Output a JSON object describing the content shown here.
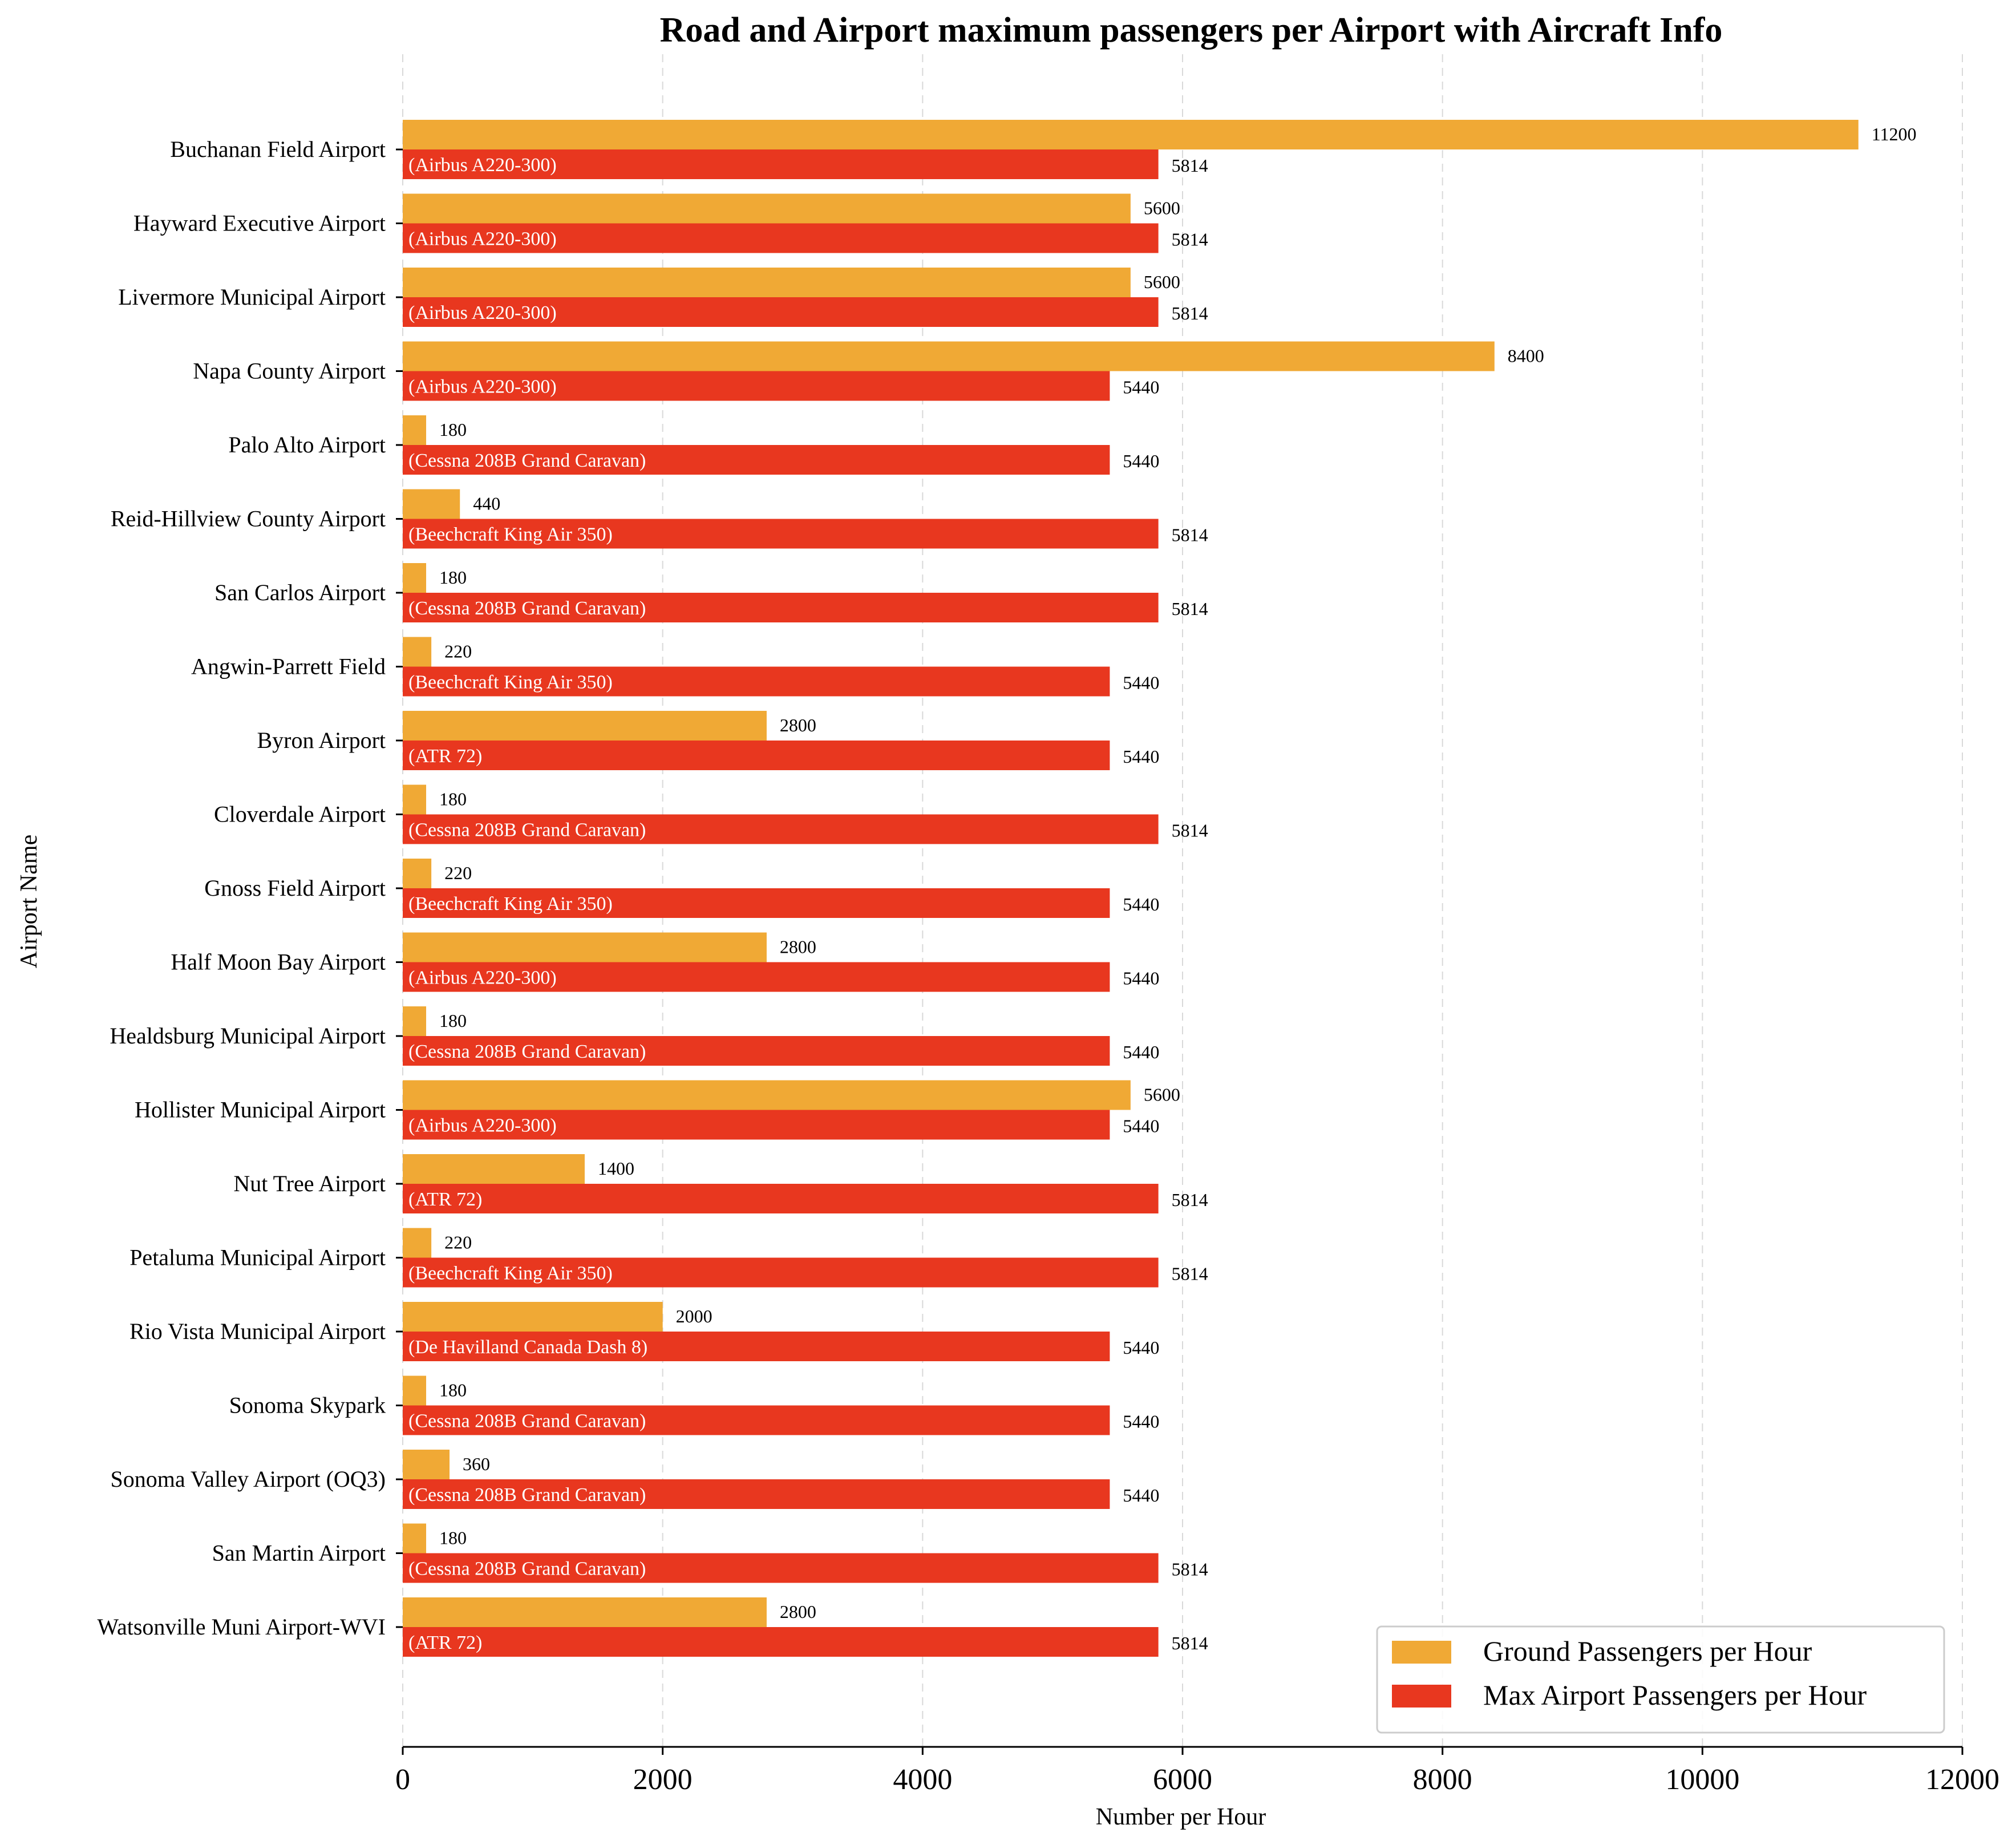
{
  "chart_data": {
    "type": "bar",
    "orientation": "horizontal",
    "title": "Road and Airport maximum passengers per Airport with Aircraft Info",
    "xlabel": "Number per Hour",
    "ylabel": "Airport Name",
    "xlim": [
      0,
      12000
    ],
    "xticks": [
      0,
      2000,
      4000,
      6000,
      8000,
      10000,
      12000
    ],
    "xtick_labels": [
      "0",
      "2000",
      "4000",
      "6000",
      "8000",
      "10000",
      "12000"
    ],
    "grid": "vertical dashed",
    "legend_position": "bottom-right",
    "categories": [
      "Buchanan Field Airport",
      "Hayward Executive Airport",
      "Livermore Municipal Airport",
      "Napa County Airport",
      "Palo Alto Airport",
      "Reid-Hillview County Airport",
      "San Carlos Airport",
      "Angwin-Parrett Field",
      "Byron Airport",
      "Cloverdale Airport",
      "Gnoss Field Airport",
      "Half Moon Bay Airport",
      "Healdsburg Municipal Airport",
      "Hollister Municipal Airport",
      "Nut Tree Airport",
      "Petaluma Municipal Airport",
      "Rio Vista Municipal Airport",
      "Sonoma Skypark",
      "Sonoma Valley Airport (OQ3)",
      "San Martin Airport",
      "Watsonville Muni Airport-WVI"
    ],
    "aircraft": [
      "(Airbus A220-300)",
      "(Airbus A220-300)",
      "(Airbus A220-300)",
      "(Airbus A220-300)",
      "(Cessna 208B Grand Caravan)",
      "(Beechcraft King Air 350)",
      "(Cessna 208B Grand Caravan)",
      "(Beechcraft King Air 350)",
      "(ATR 72)",
      "(Cessna 208B Grand Caravan)",
      "(Beechcraft King Air 350)",
      "(Airbus A220-300)",
      "(Cessna 208B Grand Caravan)",
      "(Airbus A220-300)",
      "(ATR 72)",
      "(Beechcraft King Air 350)",
      "(De Havilland Canada Dash 8)",
      "(Cessna 208B Grand Caravan)",
      "(Cessna 208B Grand Caravan)",
      "(Cessna 208B Grand Caravan)",
      "(ATR 72)"
    ],
    "series": [
      {
        "name": "Ground Passengers per Hour",
        "color": "#f0a935",
        "values": [
          11200,
          5600,
          5600,
          8400,
          180,
          440,
          180,
          220,
          2800,
          180,
          220,
          2800,
          180,
          5600,
          1400,
          220,
          2000,
          180,
          360,
          180,
          2800
        ]
      },
      {
        "name": "Max Airport Passengers per Hour",
        "color": "#e8371f",
        "values": [
          5814,
          5814,
          5814,
          5440,
          5440,
          5814,
          5814,
          5440,
          5440,
          5814,
          5440,
          5440,
          5440,
          5440,
          5814,
          5814,
          5440,
          5440,
          5440,
          5814,
          5814
        ]
      }
    ]
  }
}
